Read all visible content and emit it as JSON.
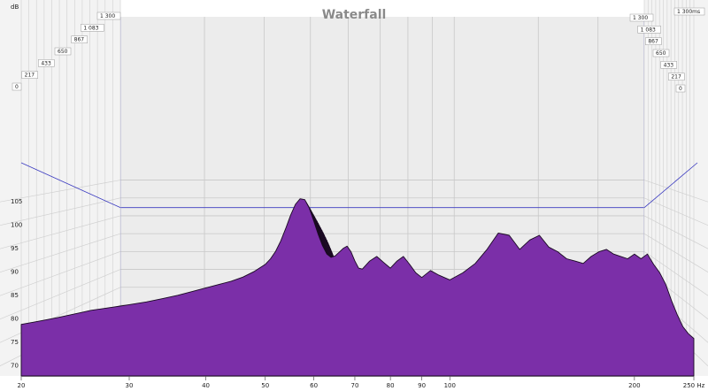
{
  "chart_data": {
    "type": "area",
    "title": "Waterfall",
    "y_unit": "dB",
    "x_unit": "Hz",
    "time_unit": "ms",
    "x_scale": "log",
    "xlim": [
      20,
      250
    ],
    "ylim": [
      69,
      109
    ],
    "y_ticks": [
      70,
      75,
      80,
      85,
      90,
      95,
      100,
      105
    ],
    "x_ticks": [
      {
        "value": 20,
        "label": "20"
      },
      {
        "value": 30,
        "label": "30"
      },
      {
        "value": 40,
        "label": "40"
      },
      {
        "value": 50,
        "label": "50"
      },
      {
        "value": 60,
        "label": "60"
      },
      {
        "value": 70,
        "label": "70"
      },
      {
        "value": 80,
        "label": "80"
      },
      {
        "value": 90,
        "label": "90"
      },
      {
        "value": 100,
        "label": "100"
      },
      {
        "value": 200,
        "label": "200"
      },
      {
        "value": 250,
        "label": "250 Hz"
      }
    ],
    "time_ticks_left": [
      "0",
      "217",
      "433",
      "650",
      "867",
      "1 083",
      "1 300"
    ],
    "time_ticks_right": [
      "0",
      "217",
      "433",
      "650",
      "867",
      "1 083",
      "1 300",
      "1 300ms"
    ],
    "fill_color": "#7b2fa8",
    "edge_color": "#1a0a22",
    "grid": true,
    "slices": 30,
    "spectrum": {
      "x": [
        20,
        21,
        22,
        23,
        24,
        25,
        26,
        27,
        28,
        29,
        30,
        32,
        34,
        36,
        38,
        40,
        42,
        44,
        46,
        48,
        50,
        51,
        52,
        53,
        54,
        55,
        56,
        57,
        58,
        59,
        60,
        61,
        62,
        63,
        64,
        65,
        66,
        67,
        68,
        69,
        70,
        71,
        72,
        74,
        76,
        78,
        80,
        82,
        84,
        86,
        88,
        90,
        93,
        96,
        100,
        105,
        110,
        115,
        120,
        125,
        130,
        135,
        140,
        145,
        150,
        155,
        160,
        165,
        170,
        175,
        180,
        185,
        190,
        195,
        200,
        205,
        210,
        215,
        220,
        225,
        230,
        235,
        240,
        245,
        250
      ],
      "y": [
        80.0,
        80.5,
        81.0,
        81.5,
        82.0,
        82.5,
        83.0,
        83.3,
        83.6,
        83.9,
        84.2,
        84.8,
        85.5,
        86.2,
        87.0,
        87.8,
        88.5,
        89.2,
        90.1,
        91.3,
        92.8,
        94.0,
        95.6,
        97.8,
        100.5,
        103.3,
        105.6,
        106.8,
        106.6,
        104.8,
        102.0,
        99.2,
        96.8,
        95.0,
        94.3,
        94.6,
        95.4,
        96.2,
        96.7,
        95.5,
        93.5,
        92.0,
        91.8,
        93.5,
        94.5,
        93.2,
        92.0,
        93.5,
        94.5,
        92.8,
        91.0,
        90.0,
        91.5,
        90.5,
        89.5,
        91.0,
        93.0,
        96.0,
        99.5,
        99.0,
        96.0,
        98.0,
        99.0,
        96.5,
        95.5,
        94.0,
        93.5,
        93.0,
        94.5,
        95.5,
        96.0,
        95.0,
        94.5,
        94.0,
        95.0,
        94.0,
        95.0,
        92.8,
        91.0,
        88.5,
        85.0,
        82.0,
        79.5,
        78.0,
        77.0
      ]
    }
  }
}
